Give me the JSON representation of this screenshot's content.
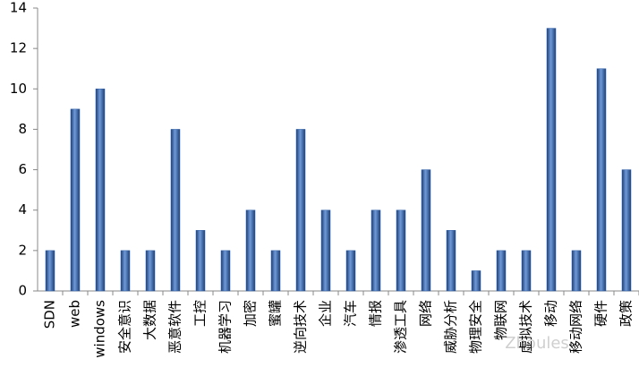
{
  "chart_data": {
    "type": "bar",
    "categories": [
      "SDN",
      "web",
      "windows",
      "安全意识",
      "大数据",
      "恶意软件",
      "工控",
      "机器学习",
      "加密",
      "蜜罐",
      "逆向技术",
      "企业",
      "汽车",
      "情报",
      "渗透工具",
      "网络",
      "威胁分析",
      "物理安全",
      "物联网",
      "虚拟技术",
      "移动",
      "移动网络",
      "硬件",
      "政策"
    ],
    "values": [
      2,
      9,
      10,
      2,
      2,
      8,
      3,
      2,
      4,
      2,
      8,
      4,
      2,
      4,
      4,
      6,
      3,
      1,
      2,
      2,
      13,
      2,
      11,
      6
    ],
    "color": "#2f5fa8",
    "ylim": [
      0,
      14
    ],
    "yticks": [
      0,
      2,
      4,
      6,
      8,
      10,
      12,
      14
    ],
    "grid": false,
    "watermark": "Zhoules"
  }
}
